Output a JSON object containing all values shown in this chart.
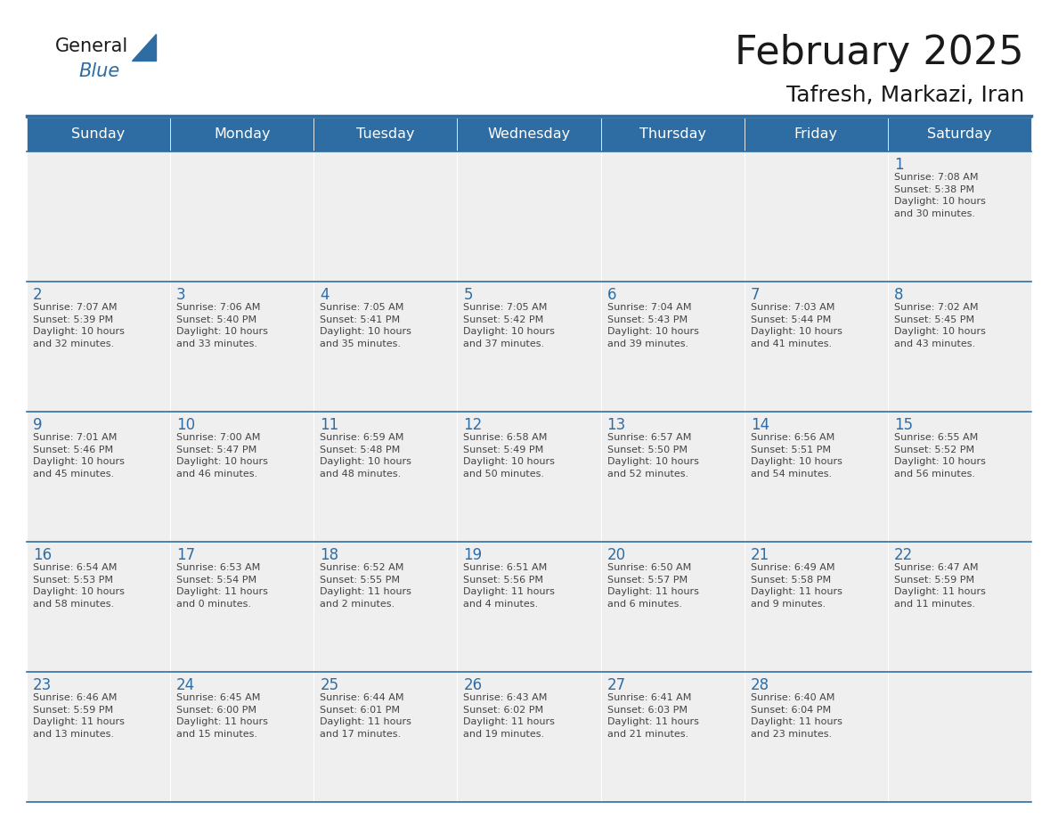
{
  "title": "February 2025",
  "subtitle": "Tafresh, Markazi, Iran",
  "days_of_week": [
    "Sunday",
    "Monday",
    "Tuesday",
    "Wednesday",
    "Thursday",
    "Friday",
    "Saturday"
  ],
  "header_bg": "#2E6DA4",
  "header_text": "#FFFFFF",
  "cell_bg": "#EFEFEF",
  "border_color": "#2E6DA4",
  "line_color": "#A0B8D0",
  "day_number_color": "#2E6DA4",
  "info_text_color": "#444444",
  "title_color": "#1A1A1A",
  "subtitle_color": "#1A1A1A",
  "logo_general_color": "#1A1A1A",
  "logo_blue_color": "#2E6DA4",
  "weeks": [
    [
      {
        "day": null,
        "info": ""
      },
      {
        "day": null,
        "info": ""
      },
      {
        "day": null,
        "info": ""
      },
      {
        "day": null,
        "info": ""
      },
      {
        "day": null,
        "info": ""
      },
      {
        "day": null,
        "info": ""
      },
      {
        "day": 1,
        "info": "Sunrise: 7:08 AM\nSunset: 5:38 PM\nDaylight: 10 hours\nand 30 minutes."
      }
    ],
    [
      {
        "day": 2,
        "info": "Sunrise: 7:07 AM\nSunset: 5:39 PM\nDaylight: 10 hours\nand 32 minutes."
      },
      {
        "day": 3,
        "info": "Sunrise: 7:06 AM\nSunset: 5:40 PM\nDaylight: 10 hours\nand 33 minutes."
      },
      {
        "day": 4,
        "info": "Sunrise: 7:05 AM\nSunset: 5:41 PM\nDaylight: 10 hours\nand 35 minutes."
      },
      {
        "day": 5,
        "info": "Sunrise: 7:05 AM\nSunset: 5:42 PM\nDaylight: 10 hours\nand 37 minutes."
      },
      {
        "day": 6,
        "info": "Sunrise: 7:04 AM\nSunset: 5:43 PM\nDaylight: 10 hours\nand 39 minutes."
      },
      {
        "day": 7,
        "info": "Sunrise: 7:03 AM\nSunset: 5:44 PM\nDaylight: 10 hours\nand 41 minutes."
      },
      {
        "day": 8,
        "info": "Sunrise: 7:02 AM\nSunset: 5:45 PM\nDaylight: 10 hours\nand 43 minutes."
      }
    ],
    [
      {
        "day": 9,
        "info": "Sunrise: 7:01 AM\nSunset: 5:46 PM\nDaylight: 10 hours\nand 45 minutes."
      },
      {
        "day": 10,
        "info": "Sunrise: 7:00 AM\nSunset: 5:47 PM\nDaylight: 10 hours\nand 46 minutes."
      },
      {
        "day": 11,
        "info": "Sunrise: 6:59 AM\nSunset: 5:48 PM\nDaylight: 10 hours\nand 48 minutes."
      },
      {
        "day": 12,
        "info": "Sunrise: 6:58 AM\nSunset: 5:49 PM\nDaylight: 10 hours\nand 50 minutes."
      },
      {
        "day": 13,
        "info": "Sunrise: 6:57 AM\nSunset: 5:50 PM\nDaylight: 10 hours\nand 52 minutes."
      },
      {
        "day": 14,
        "info": "Sunrise: 6:56 AM\nSunset: 5:51 PM\nDaylight: 10 hours\nand 54 minutes."
      },
      {
        "day": 15,
        "info": "Sunrise: 6:55 AM\nSunset: 5:52 PM\nDaylight: 10 hours\nand 56 minutes."
      }
    ],
    [
      {
        "day": 16,
        "info": "Sunrise: 6:54 AM\nSunset: 5:53 PM\nDaylight: 10 hours\nand 58 minutes."
      },
      {
        "day": 17,
        "info": "Sunrise: 6:53 AM\nSunset: 5:54 PM\nDaylight: 11 hours\nand 0 minutes."
      },
      {
        "day": 18,
        "info": "Sunrise: 6:52 AM\nSunset: 5:55 PM\nDaylight: 11 hours\nand 2 minutes."
      },
      {
        "day": 19,
        "info": "Sunrise: 6:51 AM\nSunset: 5:56 PM\nDaylight: 11 hours\nand 4 minutes."
      },
      {
        "day": 20,
        "info": "Sunrise: 6:50 AM\nSunset: 5:57 PM\nDaylight: 11 hours\nand 6 minutes."
      },
      {
        "day": 21,
        "info": "Sunrise: 6:49 AM\nSunset: 5:58 PM\nDaylight: 11 hours\nand 9 minutes."
      },
      {
        "day": 22,
        "info": "Sunrise: 6:47 AM\nSunset: 5:59 PM\nDaylight: 11 hours\nand 11 minutes."
      }
    ],
    [
      {
        "day": 23,
        "info": "Sunrise: 6:46 AM\nSunset: 5:59 PM\nDaylight: 11 hours\nand 13 minutes."
      },
      {
        "day": 24,
        "info": "Sunrise: 6:45 AM\nSunset: 6:00 PM\nDaylight: 11 hours\nand 15 minutes."
      },
      {
        "day": 25,
        "info": "Sunrise: 6:44 AM\nSunset: 6:01 PM\nDaylight: 11 hours\nand 17 minutes."
      },
      {
        "day": 26,
        "info": "Sunrise: 6:43 AM\nSunset: 6:02 PM\nDaylight: 11 hours\nand 19 minutes."
      },
      {
        "day": 27,
        "info": "Sunrise: 6:41 AM\nSunset: 6:03 PM\nDaylight: 11 hours\nand 21 minutes."
      },
      {
        "day": 28,
        "info": "Sunrise: 6:40 AM\nSunset: 6:04 PM\nDaylight: 11 hours\nand 23 minutes."
      },
      {
        "day": null,
        "info": ""
      }
    ]
  ],
  "figsize": [
    11.88,
    9.18
  ],
  "dpi": 100
}
